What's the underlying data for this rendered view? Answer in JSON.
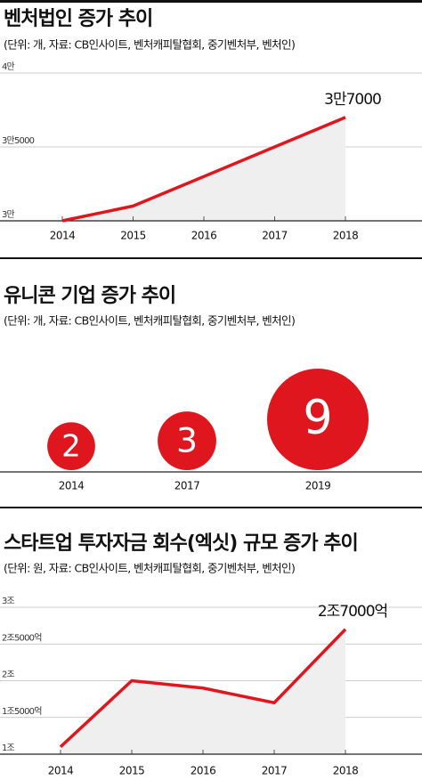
{
  "chart_data": [
    {
      "type": "line",
      "title": "벤처법인 증가 추이",
      "subtitle": "(단위: 개, 자료: CB인사이트, 벤처캐피탈협회, 중기벤처부, 벤처인)",
      "categories": [
        "2014",
        "2015",
        "2016",
        "2017",
        "2018"
      ],
      "values": [
        30000,
        31000,
        33000,
        35000,
        37000
      ],
      "value_labels": [
        null,
        null,
        null,
        null,
        "3만7000"
      ],
      "color": "#e0161e",
      "area_color": "#efefef",
      "ylim": [
        30000,
        40000
      ],
      "yticks": [
        {
          "value": 30000,
          "label": "3만"
        },
        {
          "value": 35000,
          "label": "3만5000"
        },
        {
          "value": 40000,
          "label": "4만"
        }
      ],
      "grid": true
    },
    {
      "type": "bubble",
      "title": "유니콘 기업 증가 추이",
      "subtitle": "(단위: 개, 자료: CB인사이트, 벤처캐피탈협회, 중기벤처부, 벤처인)",
      "categories": [
        "2014",
        "2017",
        "2019"
      ],
      "values": [
        2,
        3,
        9
      ],
      "color": "#e0161e"
    },
    {
      "type": "line",
      "title": "스타트업 투자자금 회수(엑싯) 규모 증가 추이",
      "subtitle": "(단위: 원, 자료: CB인사이트, 벤처캐피탈협회, 중기벤처부, 벤처인)",
      "categories": [
        "2014",
        "2015",
        "2016",
        "2017",
        "2018"
      ],
      "values": [
        1100000000000,
        2000000000000,
        1900000000000,
        1700000000000,
        2700000000000
      ],
      "value_labels": [
        null,
        null,
        null,
        null,
        "2조7000억"
      ],
      "color": "#e0161e",
      "area_color": "#efefef",
      "ylim": [
        1000000000000,
        3000000000000
      ],
      "yticks": [
        {
          "value": 1000000000000,
          "label": "1조"
        },
        {
          "value": 1500000000000,
          "label": "1조5000억"
        },
        {
          "value": 2000000000000,
          "label": "2조"
        },
        {
          "value": 2500000000000,
          "label": "2조5000억"
        },
        {
          "value": 3000000000000,
          "label": "3조"
        }
      ],
      "grid": true
    }
  ]
}
